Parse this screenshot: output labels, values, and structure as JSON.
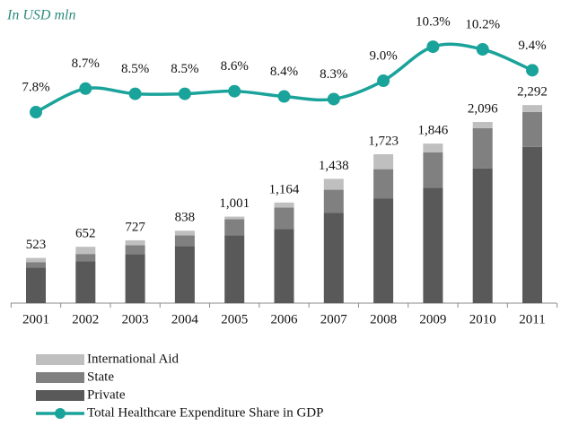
{
  "chart_data": {
    "type": "bar",
    "title": "In USD mln",
    "categories": [
      "2001",
      "2002",
      "2003",
      "2004",
      "2005",
      "2006",
      "2007",
      "2008",
      "2009",
      "2010",
      "2011"
    ],
    "stacked": true,
    "series": [
      {
        "name": "Private",
        "color": "#595959",
        "values": [
          413,
          486,
          568,
          661,
          785,
          857,
          1043,
          1209,
          1333,
          1560,
          1808
        ]
      },
      {
        "name": "State",
        "color": "#808080",
        "values": [
          62,
          83,
          103,
          124,
          186,
          248,
          269,
          341,
          413,
          465,
          403
        ]
      },
      {
        "name": "International Aid",
        "color": "#bfbfbf",
        "values": [
          48,
          83,
          56,
          53,
          30,
          59,
          126,
          173,
          100,
          71,
          81
        ]
      },
      {
        "name": "Total Healthcare Expenditure Share in GDP",
        "type": "line",
        "axis": "y2",
        "color": "#1aa39a",
        "values": [
          7.8,
          8.7,
          8.5,
          8.5,
          8.6,
          8.4,
          8.3,
          9.0,
          10.3,
          10.2,
          9.4
        ],
        "value_labels": [
          "7.8%",
          "8.7%",
          "8.5%",
          "8.5%",
          "8.6%",
          "8.4%",
          "8.3%",
          "9.0%",
          "10.3%",
          "10.2%",
          "9.4%"
        ]
      }
    ],
    "totals": [
      523,
      652,
      727,
      838,
      1001,
      1164,
      1438,
      1723,
      1846,
      2096,
      2292
    ],
    "total_labels": [
      "523",
      "652",
      "727",
      "838",
      "1,001",
      "1,164",
      "1,438",
      "1,723",
      "1,846",
      "2,096",
      "2,292"
    ],
    "ylim": [
      0,
      3300
    ],
    "y2lim": [
      0.5,
      11.4
    ]
  }
}
